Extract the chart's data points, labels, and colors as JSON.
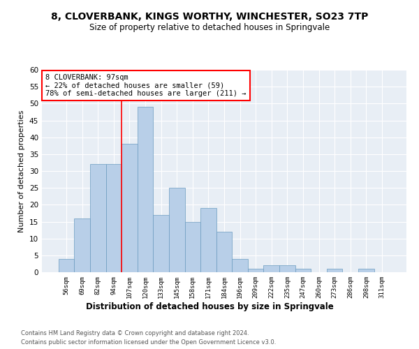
{
  "title": "8, CLOVERBANK, KINGS WORTHY, WINCHESTER, SO23 7TP",
  "subtitle": "Size of property relative to detached houses in Springvale",
  "xlabel": "Distribution of detached houses by size in Springvale",
  "ylabel": "Number of detached properties",
  "categories": [
    "56sqm",
    "69sqm",
    "82sqm",
    "94sqm",
    "107sqm",
    "120sqm",
    "133sqm",
    "145sqm",
    "158sqm",
    "171sqm",
    "184sqm",
    "196sqm",
    "209sqm",
    "222sqm",
    "235sqm",
    "247sqm",
    "260sqm",
    "273sqm",
    "286sqm",
    "298sqm",
    "311sqm"
  ],
  "values": [
    4,
    16,
    32,
    32,
    38,
    49,
    17,
    25,
    15,
    19,
    12,
    4,
    1,
    2,
    2,
    1,
    0,
    1,
    0,
    1,
    0
  ],
  "bar_color": "#b8cfe8",
  "bar_edge_color": "#6a9bbf",
  "background_color": "#e8eef5",
  "ylim": [
    0,
    60
  ],
  "yticks": [
    0,
    5,
    10,
    15,
    20,
    25,
    30,
    35,
    40,
    45,
    50,
    55,
    60
  ],
  "annotation_text": "8 CLOVERBANK: 97sqm\n← 22% of detached houses are smaller (59)\n78% of semi-detached houses are larger (211) →",
  "redline_index": 3.5,
  "footer_line1": "Contains HM Land Registry data © Crown copyright and database right 2024.",
  "footer_line2": "Contains public sector information licensed under the Open Government Licence v3.0."
}
